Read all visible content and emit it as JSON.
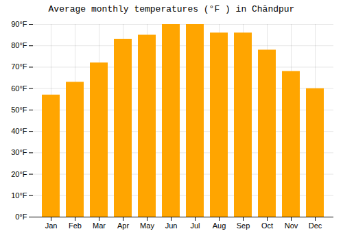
{
  "chart_data": {
    "type": "bar",
    "title": "Average monthly temperatures (°F ) in Chāndpur",
    "categories": [
      "Jan",
      "Feb",
      "Mar",
      "Apr",
      "May",
      "Jun",
      "Jul",
      "Aug",
      "Sep",
      "Oct",
      "Nov",
      "Dec"
    ],
    "values": [
      57,
      63,
      72,
      83,
      85,
      90,
      90,
      86,
      86,
      78,
      68,
      60
    ],
    "color": "#FFA500",
    "ylim": [
      0,
      90
    ],
    "yticks": [
      {
        "value": 0,
        "label": "0°F"
      },
      {
        "value": 10,
        "label": "10°F"
      },
      {
        "value": 20,
        "label": "20°F"
      },
      {
        "value": 30,
        "label": "30°F"
      },
      {
        "value": 40,
        "label": "40°F"
      },
      {
        "value": 50,
        "label": "50°F"
      },
      {
        "value": 60,
        "label": "60°F"
      },
      {
        "value": 70,
        "label": "70°F"
      },
      {
        "value": 80,
        "label": "80°F"
      },
      {
        "value": 90,
        "label": "90°F"
      }
    ],
    "grid": true
  }
}
